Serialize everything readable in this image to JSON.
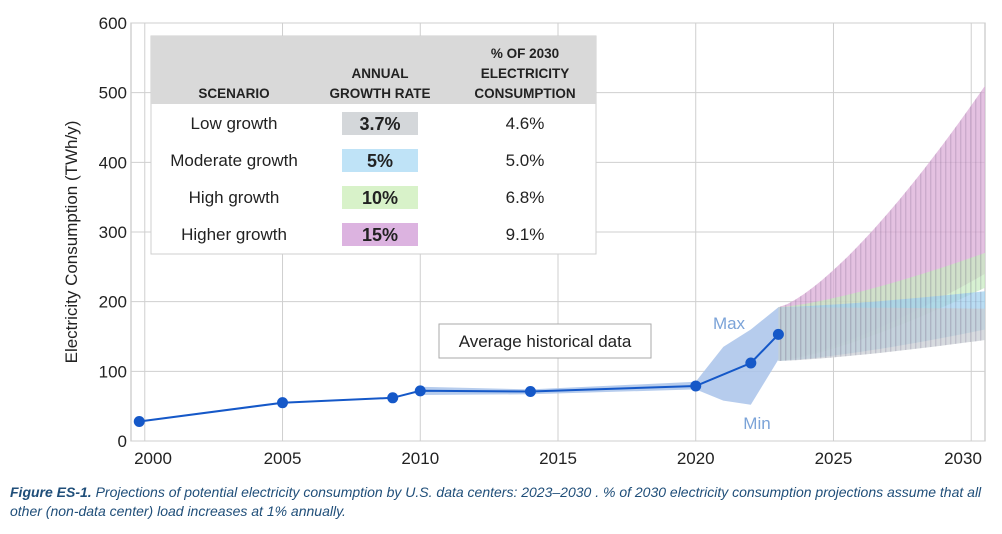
{
  "chart_data": {
    "type": "line",
    "title": "",
    "xlabel": "",
    "ylabel": "Electricity Consumption (TWh/y)",
    "xlim": [
      1999.5,
      2030.5
    ],
    "ylim": [
      0,
      600
    ],
    "x_ticks": [
      2000,
      2005,
      2010,
      2015,
      2020,
      2025,
      2030
    ],
    "y_ticks": [
      0,
      100,
      200,
      300,
      400,
      500,
      600
    ],
    "grid": true,
    "series": [
      {
        "name": "Average historical data",
        "color": "#1558c8",
        "points": [
          {
            "x": 1999.8,
            "y": 28
          },
          {
            "x": 2005,
            "y": 55
          },
          {
            "x": 2009,
            "y": 62
          },
          {
            "x": 2010,
            "y": 72
          },
          {
            "x": 2014,
            "y": 71
          },
          {
            "x": 2020,
            "y": 79
          },
          {
            "x": 2022,
            "y": 112
          },
          {
            "x": 2023,
            "y": 153
          }
        ]
      }
    ],
    "historical_range": {
      "color": "#a9c3ea",
      "min": [
        {
          "x": 2010,
          "y": 66
        },
        {
          "x": 2014,
          "y": 67
        },
        {
          "x": 2020,
          "y": 74
        },
        {
          "x": 2021,
          "y": 58
        },
        {
          "x": 2022,
          "y": 52
        },
        {
          "x": 2023,
          "y": 117
        }
      ],
      "max": [
        {
          "x": 2010,
          "y": 78
        },
        {
          "x": 2014,
          "y": 74
        },
        {
          "x": 2020,
          "y": 85
        },
        {
          "x": 2021,
          "y": 135
        },
        {
          "x": 2022,
          "y": 160
        },
        {
          "x": 2023,
          "y": 192
        }
      ]
    },
    "projection_bands": [
      {
        "scenario": "Low growth",
        "color": "#c8cdd2",
        "start_x": 2023,
        "end_x": 2030.5,
        "low": [
          115,
          145
        ],
        "high": [
          155,
          190
        ]
      },
      {
        "scenario": "Moderate growth",
        "color": "#9fd0ee",
        "start_x": 2023,
        "end_x": 2030.5,
        "low": [
          115,
          160
        ],
        "high": [
          180,
          215
        ]
      },
      {
        "scenario": "High growth",
        "color": "#c8ecc0",
        "start_x": 2023,
        "end_x": 2030.5,
        "low": [
          115,
          220
        ],
        "high": [
          180,
          270
        ]
      },
      {
        "scenario": "Higher growth",
        "color": "#d9a9d6",
        "start_x": 2023,
        "end_x": 2030.5,
        "low": [
          115,
          240
        ],
        "high": [
          190,
          510
        ]
      }
    ],
    "annotations": {
      "historical_label": "Average historical data",
      "max_label": "Max",
      "min_label": "Min"
    },
    "table": {
      "headers": {
        "scenario": "SCENARIO",
        "rate_line1": "ANNUAL",
        "rate_line2": "GROWTH RATE",
        "pct_line1": "% OF 2030",
        "pct_line2": "ELECTRICITY",
        "pct_line3": "CONSUMPTION"
      },
      "rows": [
        {
          "scenario": "Low growth",
          "rate": "3.7%",
          "pct": "4.6%",
          "color": "#d4d7da"
        },
        {
          "scenario": "Moderate growth",
          "rate": "5%",
          "pct": "5.0%",
          "color": "#bfe3f7"
        },
        {
          "scenario": "High growth",
          "rate": "10%",
          "pct": "6.8%",
          "color": "#d8f2c9"
        },
        {
          "scenario": "Higher growth",
          "rate": "15%",
          "pct": "9.1%",
          "color": "#dcb3e0"
        }
      ]
    }
  },
  "caption": {
    "label": "Figure ES-1.",
    "text": " Projections of potential electricity consumption by U.S. data centers: 2023–2030 . % of 2030 electricity consumption projections assume that all other (non-data center) load increases at 1% annually."
  }
}
